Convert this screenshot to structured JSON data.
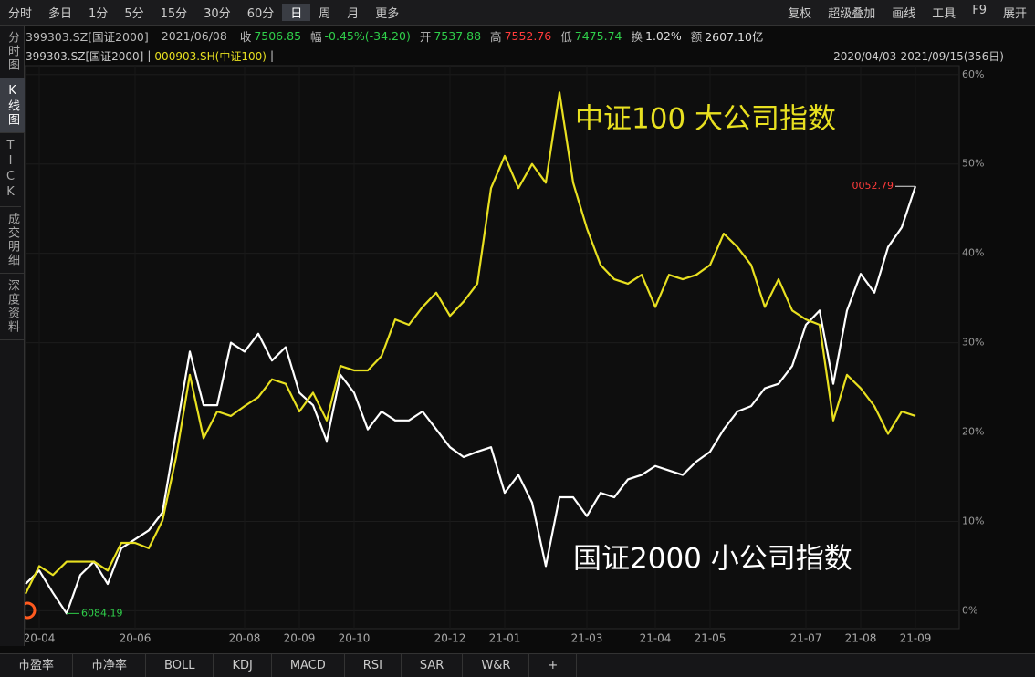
{
  "toolbar": {
    "left": [
      "分时",
      "多日",
      "1分",
      "5分",
      "15分",
      "30分",
      "60分",
      "日",
      "周",
      "月",
      "更多"
    ],
    "right": [
      "复权",
      "超级叠加",
      "画线",
      "工具",
      "F9",
      "展开"
    ]
  },
  "info": [
    {
      "label": "399303.SZ[国证2000]"
    },
    {
      "label": "2021/06/08"
    },
    {
      "label": "收",
      "value": "7506.85"
    },
    {
      "label": "幅",
      "value": "-0.45%(-34.20)"
    },
    {
      "label": "开",
      "value": "7537.88"
    },
    {
      "label": "高",
      "value": "7552.76"
    },
    {
      "label": "低",
      "value": "7475.74"
    },
    {
      "label": "换",
      "value": "1.02%"
    },
    {
      "label": "额",
      "value": "2607.10亿"
    }
  ],
  "legend": {
    "main": "399303.SZ[国证2000]",
    "overlay": "000903.SH(中证100)",
    "range": "2020/04/03-2021/09/15(356日)"
  },
  "sidebar": [
    "分时图",
    "K线图",
    "TICK",
    "成交明细",
    "深度资料"
  ],
  "tabs": [
    "市盈率",
    "市净率",
    "BOLL",
    "KDJ",
    "MACD",
    "RSI",
    "SAR",
    "W&R",
    "+"
  ],
  "chart_data": {
    "type": "line",
    "categories": [
      null,
      "20-04",
      null,
      null,
      null,
      null,
      null,
      null,
      "20-06",
      null,
      null,
      null,
      null,
      null,
      null,
      null,
      "20-08",
      null,
      null,
      null,
      "20-09",
      null,
      null,
      null,
      "20-10",
      null,
      null,
      null,
      null,
      null,
      null,
      "20-12",
      null,
      null,
      null,
      "21-01",
      null,
      null,
      null,
      null,
      null,
      "21-03",
      null,
      null,
      null,
      null,
      "21-04",
      null,
      null,
      null,
      "21-05",
      null,
      null,
      null,
      null,
      null,
      null,
      "21-07",
      null,
      null,
      null,
      "21-08",
      null,
      null,
      null,
      "21-09"
    ],
    "series": [
      {
        "name": "国证2000 小公司指数",
        "color": "#ffffff",
        "values": [
          3,
          4.5,
          2,
          -0.3,
          4,
          5.5,
          3,
          7,
          8,
          9,
          11,
          20,
          29,
          23,
          23,
          30,
          29,
          31,
          28,
          29.5,
          24.4,
          23,
          19,
          26.4,
          24.4,
          20.3,
          22.3,
          21.3,
          21.3,
          22.3,
          20.3,
          18.3,
          17.2,
          17.8,
          18.3,
          13.2,
          15.2,
          12.1,
          5,
          12.7,
          12.7,
          10.6,
          13.2,
          12.7,
          14.7,
          15.2,
          16.2,
          15.7,
          15.2,
          16.7,
          17.8,
          20.3,
          22.3,
          22.9,
          24.9,
          25.4,
          27.4,
          32,
          33.6,
          25.4,
          33.6,
          37.7,
          35.6,
          40.7,
          42.9,
          47.5
        ]
      },
      {
        "name": "中证100 大公司指数",
        "color": "#e8e020",
        "values": [
          1.9,
          5,
          4,
          5.5,
          5.5,
          5.5,
          4.5,
          7.6,
          7.6,
          7,
          10.1,
          17.2,
          26.4,
          19.3,
          22.3,
          21.8,
          22.9,
          23.9,
          25.9,
          25.4,
          22.3,
          24.4,
          21.3,
          27.4,
          26.9,
          26.9,
          28.5,
          32.6,
          32,
          34,
          35.6,
          33,
          34.6,
          36.6,
          47.3,
          50.9,
          47.3,
          50,
          47.9,
          58,
          47.9,
          42.8,
          38.7,
          37.1,
          36.6,
          37.6,
          34,
          37.6,
          37.1,
          37.6,
          38.7,
          42.2,
          40.7,
          38.7,
          34,
          37.1,
          33.6,
          32.6,
          32,
          21.3,
          26.4,
          24.9,
          22.9,
          19.8,
          22.3,
          21.8
        ]
      }
    ],
    "low_label": "6084.19",
    "last_label": "0052.79",
    "ylim": [
      -2,
      61
    ],
    "yticks": [
      {
        "value": 0,
        "label": "0%"
      },
      {
        "value": 10,
        "label": "10%"
      },
      {
        "value": 20,
        "label": "20%"
      },
      {
        "value": 30,
        "label": "30%"
      },
      {
        "value": 40,
        "label": "40%"
      },
      {
        "value": 50,
        "label": "50%"
      },
      {
        "value": 60,
        "label": "60%"
      }
    ],
    "grid": true
  }
}
